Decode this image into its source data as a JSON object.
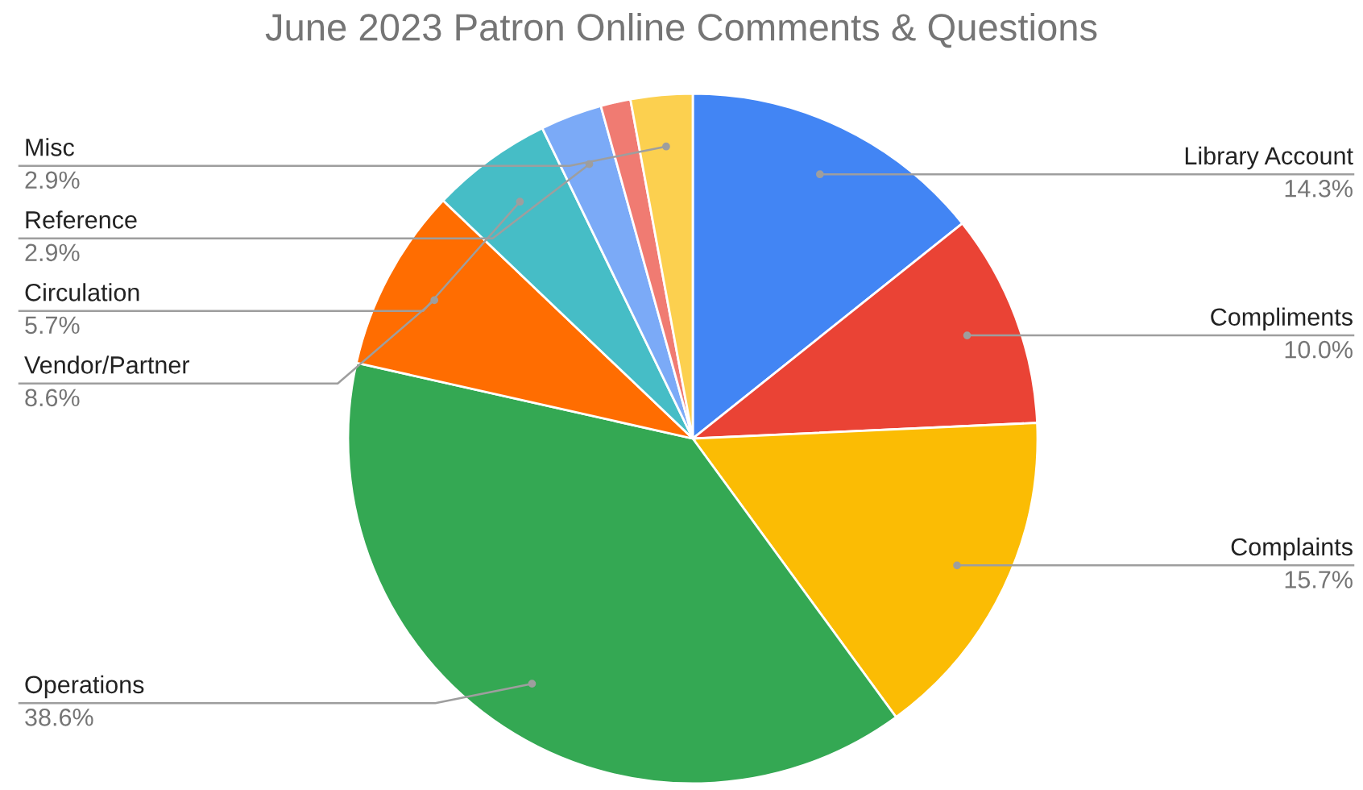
{
  "chart_data": {
    "type": "pie",
    "title": "June 2023 Patron Online Comments & Questions",
    "categories": [
      "Library Account",
      "Compliments",
      "Complaints",
      "Operations",
      "Vendor/Partner",
      "Circulation",
      "Reference",
      null,
      "Misc"
    ],
    "values": [
      14.3,
      10.0,
      15.7,
      38.6,
      8.6,
      5.7,
      2.9,
      1.4,
      2.9
    ],
    "value_labels": [
      "14.3%",
      "10.0%",
      "15.7%",
      "38.6%",
      "8.6%",
      "5.7%",
      "2.9%",
      null,
      "2.9%"
    ],
    "colors": [
      "#4285f4",
      "#ea4335",
      "#fbbc04",
      "#34a853",
      "#ff6d01",
      "#46bdc6",
      "#7baaf7",
      "#f07b72",
      "#fcd04f"
    ],
    "legend": false
  }
}
